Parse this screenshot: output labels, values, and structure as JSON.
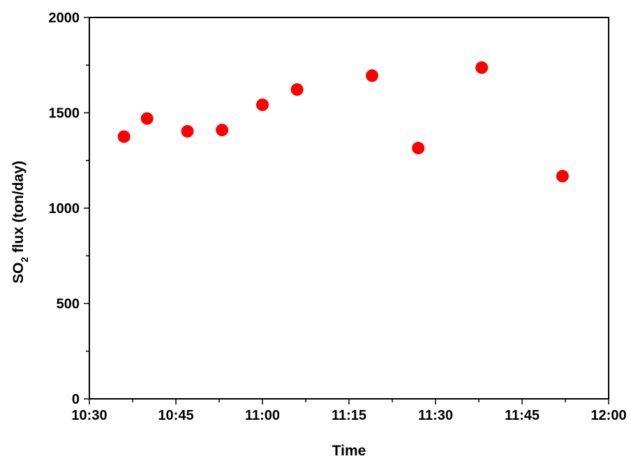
{
  "chart_data": {
    "type": "scatter",
    "xlabel": "Time",
    "ylabel": {
      "prefix": "SO",
      "subscript": "2",
      "suffix": " flux (ton/day)"
    },
    "x_ticks": [
      "10:30",
      "10:45",
      "11:00",
      "11:15",
      "11:30",
      "11:45",
      "12:00"
    ],
    "y_ticks": [
      0,
      500,
      1000,
      1500,
      2000
    ],
    "xlim": [
      "10:30",
      "12:00"
    ],
    "ylim": [
      0,
      2000
    ],
    "grid": false,
    "marker_color": "#ff0000",
    "x": [
      "10:36",
      "10:40",
      "10:47",
      "10:53",
      "11:00",
      "11:06",
      "11:19",
      "11:27",
      "11:38",
      "11:52"
    ],
    "y": [
      1375,
      1470,
      1403,
      1410,
      1542,
      1622,
      1695,
      1315,
      1737,
      1168
    ]
  }
}
